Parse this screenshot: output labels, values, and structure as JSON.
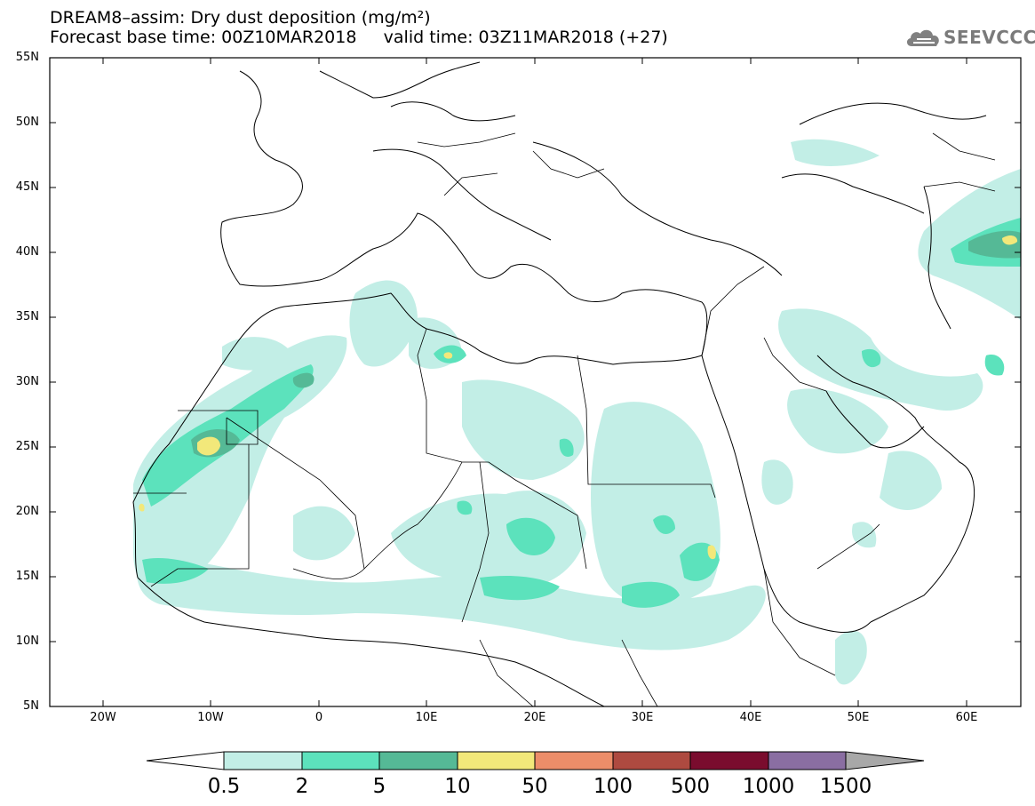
{
  "title_line1": "DREAM8–assim: Dry dust deposition (mg/m²)",
  "title_line2": "Forecast base time: 00Z10MAR2018     valid time: 03Z11MAR2018 (+27)",
  "logo": {
    "text": "SEEVCCC",
    "icon": "cloud-icon"
  },
  "lat_labels": [
    "55N",
    "50N",
    "45N",
    "40N",
    "35N",
    "30N",
    "25N",
    "20N",
    "15N",
    "10N",
    "5N"
  ],
  "lon_labels": [
    "20W",
    "10W",
    "0",
    "10E",
    "20E",
    "30E",
    "40E",
    "50E",
    "60E"
  ],
  "colorbar": {
    "levels": [
      "0.5",
      "2",
      "5",
      "10",
      "50",
      "100",
      "500",
      "1000",
      "1500"
    ],
    "colors": [
      "#c2eee6",
      "#5ce2bc",
      "#55b996",
      "#f2e87a",
      "#ec8d69",
      "#ae4a40",
      "#7a0c2e",
      "#8a6ea2"
    ],
    "under_color": "#ffffff",
    "over_color": "#a8a8a8"
  },
  "map_colors": {
    "land_line": "#000000",
    "background": "#ffffff"
  }
}
